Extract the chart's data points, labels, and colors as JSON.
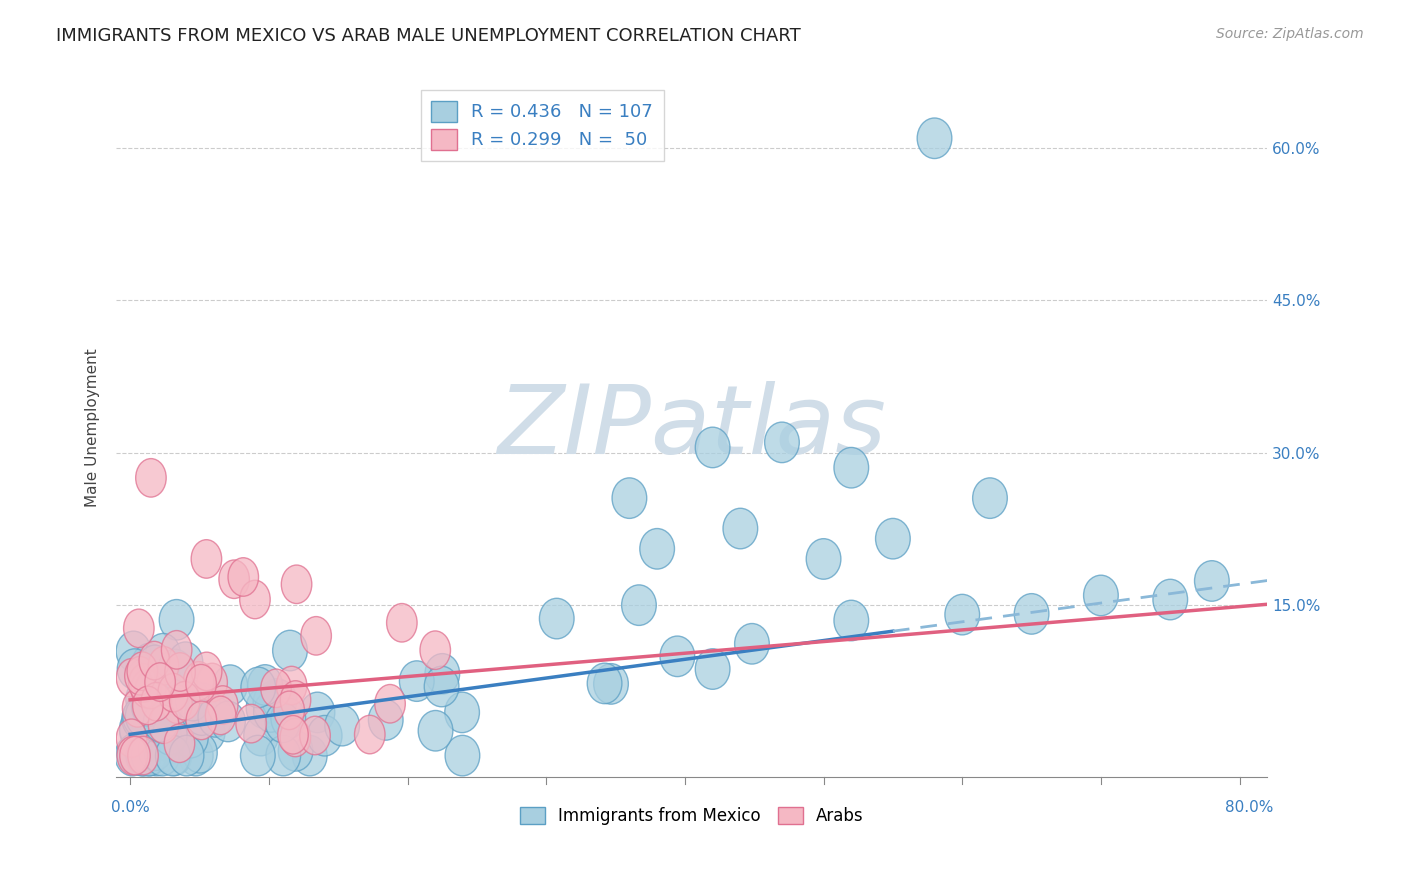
{
  "title": "IMMIGRANTS FROM MEXICO VS ARAB MALE UNEMPLOYMENT CORRELATION CHART",
  "source": "Source: ZipAtlas.com",
  "ylabel": "Male Unemployment",
  "ytick_labels": [
    "15.0%",
    "30.0%",
    "45.0%",
    "60.0%"
  ],
  "ytick_values": [
    0.15,
    0.3,
    0.45,
    0.6
  ],
  "xlim": [
    -0.01,
    0.82
  ],
  "ylim": [
    -0.02,
    0.67
  ],
  "series1_color": "#a8cfe0",
  "series2_color": "#f5b8c4",
  "series1_edge": "#5b9fc4",
  "series2_edge": "#e07090",
  "trendline1_color": "#3a7fc1",
  "trendline2_color": "#e06080",
  "trendline1_dash_color": "#8ab8d8",
  "watermark_color": "#d0dde8",
  "title_fontsize": 13,
  "source_fontsize": 10,
  "axis_label_fontsize": 11,
  "tick_fontsize": 11,
  "background_color": "#ffffff",
  "legend_box_color": "#ffffff",
  "legend_edge_color": "#cccccc"
}
